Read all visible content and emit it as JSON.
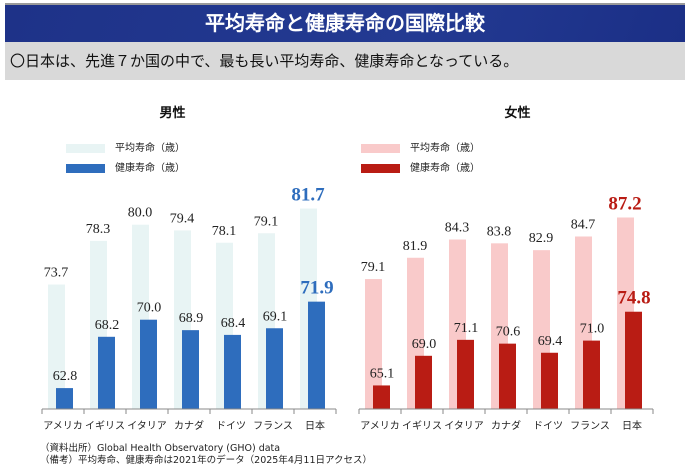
{
  "header": {
    "title": "平均寿命と健康寿命の国際比較"
  },
  "summary": {
    "text": "〇日本は、先進７か国の中で、最も長い平均寿命、健康寿命となっている。"
  },
  "legend": {
    "avg_label": "平均寿命（歳）",
    "healthy_label": "健康寿命（歳）"
  },
  "colors": {
    "male_avg": "#e8f4f4",
    "male_healthy": "#2e6dbd",
    "female_avg": "#f9caca",
    "female_healthy": "#b91c14",
    "male_highlight": "#2e6dbd",
    "female_highlight": "#b91c14"
  },
  "chart_data": [
    {
      "type": "bar",
      "title": "男性",
      "categories": [
        "アメリカ",
        "イギリス",
        "イタリア",
        "カナダ",
        "ドイツ",
        "フランス",
        "日本"
      ],
      "series": [
        {
          "name": "平均寿命（歳）",
          "values": [
            73.7,
            78.3,
            80.0,
            79.4,
            78.1,
            79.1,
            81.7
          ]
        },
        {
          "name": "健康寿命（歳）",
          "values": [
            62.8,
            68.2,
            70.0,
            68.9,
            68.4,
            69.1,
            71.9
          ]
        }
      ],
      "highlight_category": "日本",
      "ylim": [
        60,
        84
      ],
      "legend_position": "top-left",
      "grid": false
    },
    {
      "type": "bar",
      "title": "女性",
      "categories": [
        "アメリカ",
        "イギリス",
        "イタリア",
        "カナダ",
        "ドイツ",
        "フランス",
        "日本"
      ],
      "series": [
        {
          "name": "平均寿命（歳）",
          "values": [
            79.1,
            81.9,
            84.3,
            83.8,
            82.9,
            84.7,
            87.2
          ]
        },
        {
          "name": "健康寿命（歳）",
          "values": [
            65.1,
            69.0,
            71.1,
            70.6,
            69.4,
            71.0,
            74.8
          ]
        }
      ],
      "highlight_category": "日本",
      "ylim": [
        60,
        88
      ],
      "legend_position": "top-left",
      "grid": false
    }
  ],
  "footer": {
    "source": "（資料出所）Global Health Observatory (GHO) data",
    "note": "（備考）平均寿命、健康寿命は2021年のデータ（2025年4月11日アクセス）"
  }
}
